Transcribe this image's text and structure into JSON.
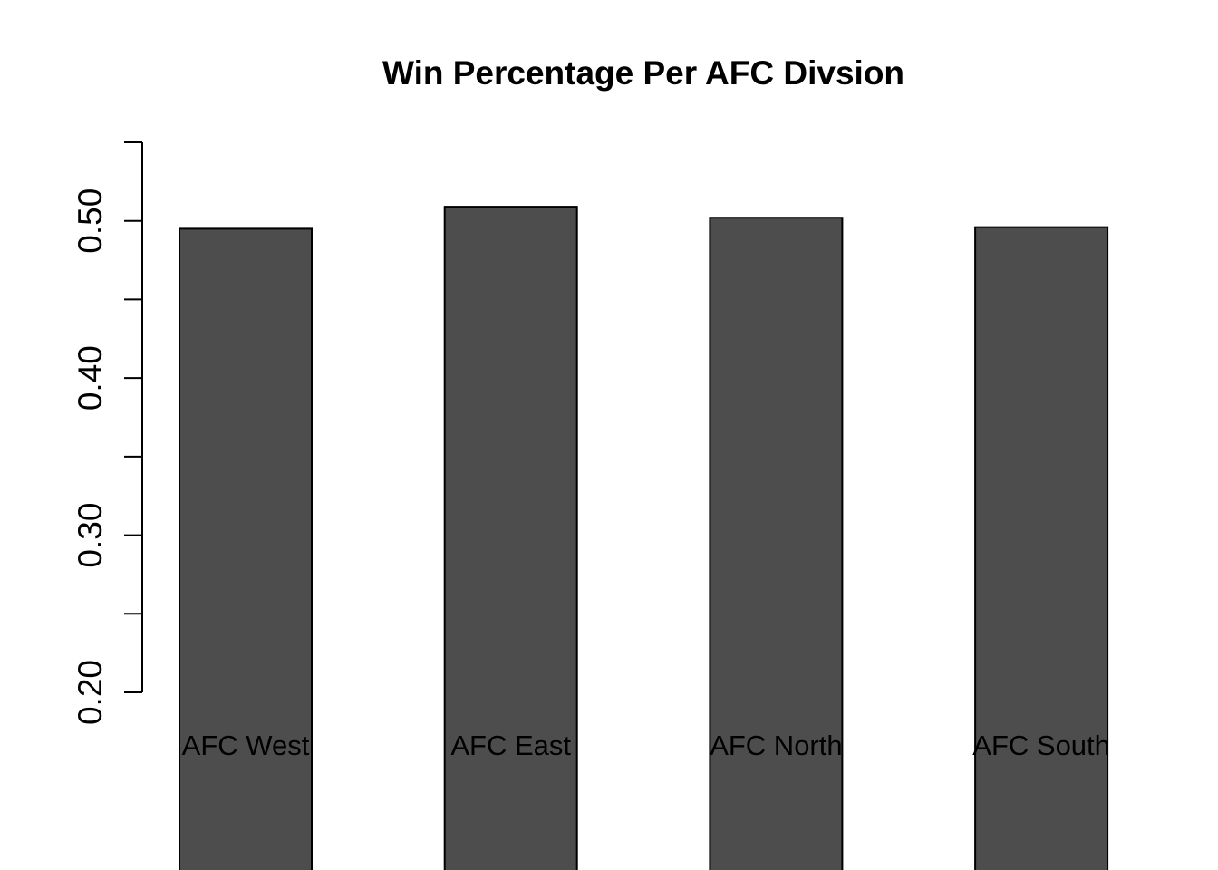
{
  "chart_data": {
    "type": "bar",
    "title": "Win Percentage Per AFC Divsion",
    "xlabel": "",
    "ylabel": "",
    "categories": [
      "AFC West",
      "AFC East",
      "AFC North",
      "AFC South"
    ],
    "values": [
      0.495,
      0.509,
      0.502,
      0.496
    ],
    "ylim": [
      0.2,
      0.55
    ],
    "y_ticks": [
      {
        "value": 0.2,
        "label": "0.20"
      },
      {
        "value": 0.25,
        "label": ""
      },
      {
        "value": 0.3,
        "label": "0.30"
      },
      {
        "value": 0.35,
        "label": ""
      },
      {
        "value": 0.4,
        "label": "0.40"
      },
      {
        "value": 0.45,
        "label": ""
      },
      {
        "value": 0.5,
        "label": "0.50"
      },
      {
        "value": 0.55,
        "label": ""
      }
    ],
    "bar_color": "#4d4d4d",
    "grid": false,
    "legend": "none"
  }
}
